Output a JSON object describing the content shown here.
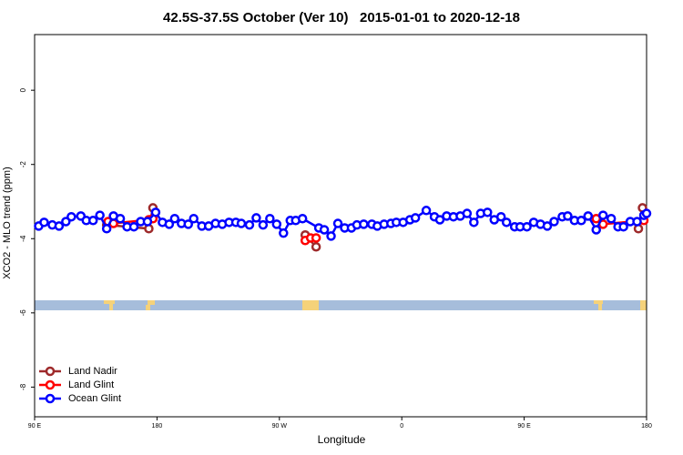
{
  "chart_data": {
    "type": "line",
    "title": "42.5S-37.5S October (Ver 10)   2015-01-01 to 2020-12-18",
    "x_label": "Longitude",
    "y_label": "XCO2 - MLO trend (ppm)",
    "xlim": [
      90,
      540
    ],
    "xticks": [
      {
        "value": 90,
        "label": "90 E"
      },
      {
        "value": 180,
        "label": "180"
      },
      {
        "value": 270,
        "label": "90 W"
      },
      {
        "value": 360,
        "label": "0"
      },
      {
        "value": 450,
        "label": "90 E"
      },
      {
        "value": 540,
        "label": "180"
      }
    ],
    "ylim": [
      -8.8,
      1.5
    ],
    "yticks": [
      0,
      -2,
      -4,
      -6,
      -8
    ],
    "legend": "bottom-left",
    "series": [
      {
        "name": "Land Nadir",
        "color": "#9e2a2b",
        "x": [
          143,
          174,
          177,
          289,
          297,
          534,
          537
        ],
        "values": [
          -3.63,
          -3.73,
          -3.17,
          -3.9,
          -4.22,
          -3.73,
          -3.17
        ]
      },
      {
        "name": "Land Glint",
        "color": "#ff0000",
        "x": [
          144,
          148,
          174,
          177,
          289,
          293,
          297,
          503,
          508,
          538
        ],
        "values": [
          -3.54,
          -3.59,
          -3.49,
          -3.46,
          -4.05,
          -3.98,
          -3.98,
          -3.46,
          -3.61,
          -3.51
        ]
      },
      {
        "name": "Ocean Glint",
        "color": "#0000ff",
        "x": [
          93,
          97,
          103,
          108,
          113,
          117,
          124,
          128,
          133,
          138,
          143,
          148,
          153,
          158,
          163,
          168,
          173,
          179,
          184,
          189,
          193,
          198,
          203,
          207,
          213,
          218,
          223,
          228,
          233,
          238,
          242,
          248,
          253,
          258,
          263,
          268,
          273,
          278,
          282,
          287,
          299,
          303,
          308,
          313,
          318,
          323,
          327,
          332,
          338,
          342,
          347,
          352,
          356,
          361,
          366,
          370,
          378,
          384,
          388,
          393,
          398,
          403,
          408,
          413,
          418,
          423,
          428,
          433,
          437,
          443,
          447,
          452,
          457,
          462,
          467,
          472,
          478,
          482,
          487,
          492,
          497,
          503,
          508,
          514,
          519,
          523,
          528,
          533,
          538,
          540
        ],
        "values": [
          -3.66,
          -3.56,
          -3.63,
          -3.66,
          -3.54,
          -3.41,
          -3.39,
          -3.51,
          -3.51,
          -3.37,
          -3.73,
          -3.39,
          -3.46,
          -3.68,
          -3.68,
          -3.54,
          -3.54,
          -3.29,
          -3.56,
          -3.61,
          -3.46,
          -3.59,
          -3.61,
          -3.46,
          -3.66,
          -3.66,
          -3.59,
          -3.61,
          -3.56,
          -3.56,
          -3.59,
          -3.63,
          -3.44,
          -3.63,
          -3.46,
          -3.61,
          -3.85,
          -3.51,
          -3.51,
          -3.46,
          -3.71,
          -3.76,
          -3.93,
          -3.59,
          -3.71,
          -3.71,
          -3.63,
          -3.61,
          -3.61,
          -3.66,
          -3.61,
          -3.59,
          -3.56,
          -3.56,
          -3.49,
          -3.44,
          -3.24,
          -3.41,
          -3.49,
          -3.39,
          -3.41,
          -3.39,
          -3.32,
          -3.56,
          -3.32,
          -3.29,
          -3.49,
          -3.41,
          -3.56,
          -3.68,
          -3.68,
          -3.68,
          -3.56,
          -3.61,
          -3.66,
          -3.54,
          -3.41,
          -3.39,
          -3.51,
          -3.51,
          -3.39,
          -3.76,
          -3.37,
          -3.46,
          -3.68,
          -3.68,
          -3.54,
          -3.54,
          -3.37,
          -3.32
        ]
      }
    ]
  }
}
